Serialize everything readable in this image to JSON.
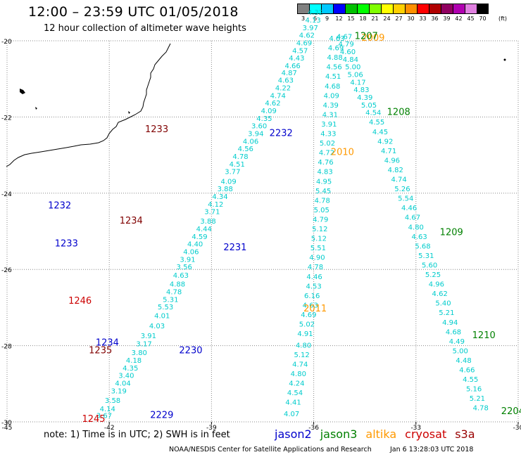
{
  "title": "12:00 – 23:59 UTC 01/05/2018",
  "subtitle": "12 hour collection of altimeter wave heights",
  "colorbar": {
    "colors": [
      "#808080",
      "#00ffff",
      "#00c8ff",
      "#0000ff",
      "#00c000",
      "#00ff00",
      "#80ff00",
      "#ffff00",
      "#ffd000",
      "#ff9000",
      "#ff0000",
      "#b00000",
      "#900060",
      "#b000b0",
      "#e080e0",
      "#000000"
    ],
    "labels": [
      "3",
      "6",
      "9",
      "12",
      "15",
      "18",
      "21",
      "24",
      "27",
      "30",
      "33",
      "36",
      "39",
      "42",
      "45",
      "70"
    ],
    "unit": "(ft)"
  },
  "note": "note:  1) Time is in UTC;  2) SWH is in feet",
  "legend": [
    {
      "name": "jason2",
      "color": "#0000cc"
    },
    {
      "name": "jason3",
      "color": "#008000"
    },
    {
      "name": "altika",
      "color": "#ff9900"
    },
    {
      "name": "cryosat",
      "color": "#cc0000"
    },
    {
      "name": "s3a",
      "color": "#990000"
    }
  ],
  "footer": "NOAA/NESDIS Center for Satellite Applications and Research",
  "footer_date": "Jan  6 13:28:03 UTC 2018",
  "chart_data": {
    "type": "scatter",
    "xlim": [
      -45,
      -30
    ],
    "ylim": [
      -30,
      -20
    ],
    "x_ticks": [
      -45,
      -42,
      -39,
      -36,
      -33,
      -30
    ],
    "y_ticks": [
      -20,
      -22,
      -24,
      -26,
      -28,
      -30
    ],
    "x_tick_labels": [
      "-45",
      "-42",
      "-39",
      "-36",
      "-33",
      "-30"
    ],
    "y_tick_labels": [
      "-20",
      "-22",
      "-24",
      "-26",
      "-28",
      "-30"
    ],
    "time_labels": [
      {
        "text": "1233",
        "color": "#800000",
        "lon": -40.95,
        "lat": -22.4
      },
      {
        "text": "1232",
        "color": "#0000cc",
        "lon": -43.8,
        "lat": -24.4
      },
      {
        "text": "1233",
        "color": "#0000cc",
        "lon": -43.6,
        "lat": -25.4
      },
      {
        "text": "1234",
        "color": "#800000",
        "lon": -41.7,
        "lat": -24.8
      },
      {
        "text": "1246",
        "color": "#cc0000",
        "lon": -43.2,
        "lat": -26.9
      },
      {
        "text": "1234",
        "color": "#0000cc",
        "lon": -42.4,
        "lat": -28.0
      },
      {
        "text": "1235",
        "color": "#800000",
        "lon": -42.6,
        "lat": -28.2
      },
      {
        "text": "1245",
        "color": "#cc0000",
        "lon": -42.8,
        "lat": -30.0
      },
      {
        "text": "2229",
        "color": "#0000cc",
        "lon": -40.8,
        "lat": -29.9
      },
      {
        "text": "2230",
        "color": "#0000cc",
        "lon": -39.95,
        "lat": -28.2
      },
      {
        "text": "2231",
        "color": "#0000cc",
        "lon": -38.65,
        "lat": -25.5
      },
      {
        "text": "2232",
        "color": "#0000cc",
        "lon": -37.3,
        "lat": -22.5
      },
      {
        "text": "2010",
        "color": "#ff9900",
        "lon": -35.5,
        "lat": -23.0
      },
      {
        "text": "2011",
        "color": "#ff9900",
        "lon": -36.3,
        "lat": -27.1
      },
      {
        "text": "2009",
        "color": "#ff9900",
        "lon": -34.6,
        "lat": -20.0
      },
      {
        "text": "1207",
        "color": "#008000",
        "lon": -34.8,
        "lat": -19.95
      },
      {
        "text": "1208",
        "color": "#008000",
        "lon": -33.85,
        "lat": -21.95
      },
      {
        "text": "1209",
        "color": "#008000",
        "lon": -32.3,
        "lat": -25.1
      },
      {
        "text": "1210",
        "color": "#008000",
        "lon": -31.35,
        "lat": -27.8
      },
      {
        "text": "2204",
        "color": "#008000",
        "lon": -30.5,
        "lat": -29.8
      }
    ],
    "series": [
      {
        "name": "jason2-2229-2232",
        "color": "#00cccc",
        "points": [
          [
            -42.15,
            -29.9,
            "3.67"
          ],
          [
            -42.05,
            -29.72,
            "4.14"
          ],
          [
            -41.9,
            -29.5,
            "3.58"
          ],
          [
            -41.72,
            -29.25,
            "3.19"
          ],
          [
            -41.6,
            -29.05,
            "4.04"
          ],
          [
            -41.5,
            -28.85,
            "3.40"
          ],
          [
            -41.38,
            -28.65,
            "4.35"
          ],
          [
            -41.28,
            -28.45,
            "4.18"
          ],
          [
            -41.12,
            -28.25,
            "3.80"
          ],
          [
            -40.98,
            -28.02,
            "3.17"
          ],
          [
            -40.85,
            -27.8,
            "3.91"
          ],
          [
            -40.6,
            -27.55,
            "4.03"
          ],
          [
            -40.45,
            -27.28,
            "4.01"
          ],
          [
            -40.35,
            -27.05,
            "5.53"
          ],
          [
            -40.2,
            -26.85,
            "5.31"
          ],
          [
            -40.1,
            -26.65,
            "4.78"
          ],
          [
            -40.0,
            -26.45,
            "4.88"
          ],
          [
            -39.9,
            -26.22,
            "4.63"
          ],
          [
            -39.8,
            -26.0,
            "3.56"
          ],
          [
            -39.7,
            -25.8,
            "3.91"
          ],
          [
            -39.6,
            -25.6,
            "4.06"
          ],
          [
            -39.48,
            -25.4,
            "4.40"
          ],
          [
            -39.35,
            -25.2,
            "4.59"
          ],
          [
            -39.22,
            -25.0,
            "4.44"
          ],
          [
            -39.1,
            -24.8,
            "3.88"
          ],
          [
            -38.98,
            -24.55,
            "3.71"
          ],
          [
            -38.88,
            -24.35,
            "4.12"
          ],
          [
            -38.75,
            -24.15,
            "4.34"
          ],
          [
            -38.6,
            -23.95,
            "3.88"
          ],
          [
            -38.5,
            -23.75,
            "4.09"
          ],
          [
            -38.38,
            -23.5,
            "3.77"
          ],
          [
            -38.25,
            -23.3,
            "4.51"
          ],
          [
            -38.15,
            -23.1,
            "4.78"
          ],
          [
            -38.0,
            -22.9,
            "4.56"
          ],
          [
            -37.85,
            -22.7,
            "4.06"
          ],
          [
            -37.7,
            -22.5,
            "3.94"
          ],
          [
            -37.6,
            -22.3,
            "3.60"
          ],
          [
            -37.45,
            -22.1,
            "4.35"
          ],
          [
            -37.32,
            -21.9,
            "4.09"
          ],
          [
            -37.2,
            -21.7,
            "4.62"
          ],
          [
            -37.05,
            -21.5,
            "4.74"
          ],
          [
            -36.9,
            -21.3,
            "4.22"
          ],
          [
            -36.82,
            -21.1,
            "4.63"
          ],
          [
            -36.72,
            -20.9,
            "4.87"
          ],
          [
            -36.62,
            -20.72,
            "4.66"
          ],
          [
            -36.5,
            -20.52,
            "4.43"
          ],
          [
            -36.4,
            -20.32,
            "4.57"
          ],
          [
            -36.28,
            -20.12,
            "4.69"
          ],
          [
            -36.2,
            -19.92,
            "4.62"
          ],
          [
            -36.1,
            -19.72,
            "3.97"
          ],
          [
            -36.02,
            -19.52,
            "4.13"
          ],
          [
            -35.95,
            -19.32,
            "4.32"
          ]
        ]
      },
      {
        "name": "altika-2009-2011",
        "color": "#00cccc",
        "points": [
          [
            -36.65,
            -29.85,
            "4.07"
          ],
          [
            -36.6,
            -29.55,
            "4.41"
          ],
          [
            -36.55,
            -29.3,
            "4.54"
          ],
          [
            -36.5,
            -29.05,
            "4.24"
          ],
          [
            -36.45,
            -28.8,
            "4.80"
          ],
          [
            -36.4,
            -28.55,
            "4.74"
          ],
          [
            -36.35,
            -28.3,
            "5.12"
          ],
          [
            -36.3,
            -28.05,
            "4.80"
          ],
          [
            -36.25,
            -27.75,
            "4.91"
          ],
          [
            -36.2,
            -27.5,
            "5.02"
          ],
          [
            -36.15,
            -27.25,
            "4.69"
          ],
          [
            -36.1,
            -27.0,
            "4.63"
          ],
          [
            -36.05,
            -26.75,
            "6.16"
          ],
          [
            -36.0,
            -26.5,
            "4.53"
          ],
          [
            -35.98,
            -26.25,
            "4.46"
          ],
          [
            -35.95,
            -26.0,
            "4.78"
          ],
          [
            -35.9,
            -25.75,
            "4.90"
          ],
          [
            -35.87,
            -25.5,
            "5.51"
          ],
          [
            -35.85,
            -25.25,
            "5.12"
          ],
          [
            -35.82,
            -25.0,
            "5.12"
          ],
          [
            -35.8,
            -24.75,
            "4.79"
          ],
          [
            -35.77,
            -24.5,
            "5.05"
          ],
          [
            -35.75,
            -24.25,
            "4.78"
          ],
          [
            -35.72,
            -24.0,
            "5.45"
          ],
          [
            -35.7,
            -23.75,
            "4.95"
          ],
          [
            -35.67,
            -23.5,
            "4.83"
          ],
          [
            -35.65,
            -23.25,
            "4.76"
          ],
          [
            -35.62,
            -23.0,
            "4.72"
          ],
          [
            -35.6,
            -22.75,
            "5.02"
          ],
          [
            -35.57,
            -22.5,
            "4.33"
          ],
          [
            -35.55,
            -22.25,
            "3.91"
          ],
          [
            -35.52,
            -22.0,
            "4.31"
          ],
          [
            -35.5,
            -21.75,
            "4.39"
          ],
          [
            -35.48,
            -21.5,
            "4.09"
          ],
          [
            -35.45,
            -21.25,
            "4.68"
          ],
          [
            -35.43,
            -21.0,
            "4.51"
          ],
          [
            -35.4,
            -20.75,
            "4.56"
          ],
          [
            -35.38,
            -20.5,
            "4.88"
          ],
          [
            -35.35,
            -20.25,
            "4.69"
          ],
          [
            -35.32,
            -20.0,
            "4.63"
          ]
        ]
      },
      {
        "name": "jason3-1207-1210",
        "color": "#00cccc",
        "points": [
          [
            -35.1,
            -19.95,
            "4.67"
          ],
          [
            -35.05,
            -20.15,
            "4.79"
          ],
          [
            -35.0,
            -20.35,
            "4.60"
          ],
          [
            -34.92,
            -20.55,
            "4.84"
          ],
          [
            -34.85,
            -20.75,
            "5.00"
          ],
          [
            -34.78,
            -20.95,
            "5.06"
          ],
          [
            -34.7,
            -21.15,
            "4.17"
          ],
          [
            -34.6,
            -21.35,
            "4.83"
          ],
          [
            -34.5,
            -21.55,
            "4.39"
          ],
          [
            -34.38,
            -21.75,
            "5.05"
          ],
          [
            -34.25,
            -21.95,
            "4.54"
          ],
          [
            -34.15,
            -22.2,
            "4.55"
          ],
          [
            -34.05,
            -22.45,
            "4.45"
          ],
          [
            -33.9,
            -22.7,
            "4.92"
          ],
          [
            -33.8,
            -22.95,
            "4.71"
          ],
          [
            -33.7,
            -23.2,
            "4.96"
          ],
          [
            -33.6,
            -23.45,
            "4.82"
          ],
          [
            -33.5,
            -23.7,
            "4.74"
          ],
          [
            -33.4,
            -23.95,
            "5.26"
          ],
          [
            -33.3,
            -24.2,
            "5.54"
          ],
          [
            -33.2,
            -24.45,
            "4.46"
          ],
          [
            -33.1,
            -24.7,
            "4.67"
          ],
          [
            -33.0,
            -24.95,
            "4.80"
          ],
          [
            -32.9,
            -25.2,
            "4.63"
          ],
          [
            -32.8,
            -25.45,
            "5.68"
          ],
          [
            -32.7,
            -25.7,
            "5.31"
          ],
          [
            -32.6,
            -25.95,
            "5.60"
          ],
          [
            -32.5,
            -26.2,
            "5.25"
          ],
          [
            -32.4,
            -26.45,
            "4.96"
          ],
          [
            -32.3,
            -26.7,
            "4.62"
          ],
          [
            -32.2,
            -26.95,
            "5.40"
          ],
          [
            -32.1,
            -27.2,
            "5.21"
          ],
          [
            -32.0,
            -27.45,
            "4.94"
          ],
          [
            -31.9,
            -27.7,
            "4.68"
          ],
          [
            -31.8,
            -27.95,
            "4.49"
          ],
          [
            -31.7,
            -28.2,
            "5.00"
          ],
          [
            -31.6,
            -28.45,
            "4.48"
          ],
          [
            -31.5,
            -28.7,
            "4.66"
          ],
          [
            -31.4,
            -28.95,
            "4.55"
          ],
          [
            -31.3,
            -29.2,
            "5.16"
          ],
          [
            -31.2,
            -29.45,
            "5.21"
          ],
          [
            -31.1,
            -29.7,
            "4.78"
          ]
        ]
      }
    ]
  }
}
